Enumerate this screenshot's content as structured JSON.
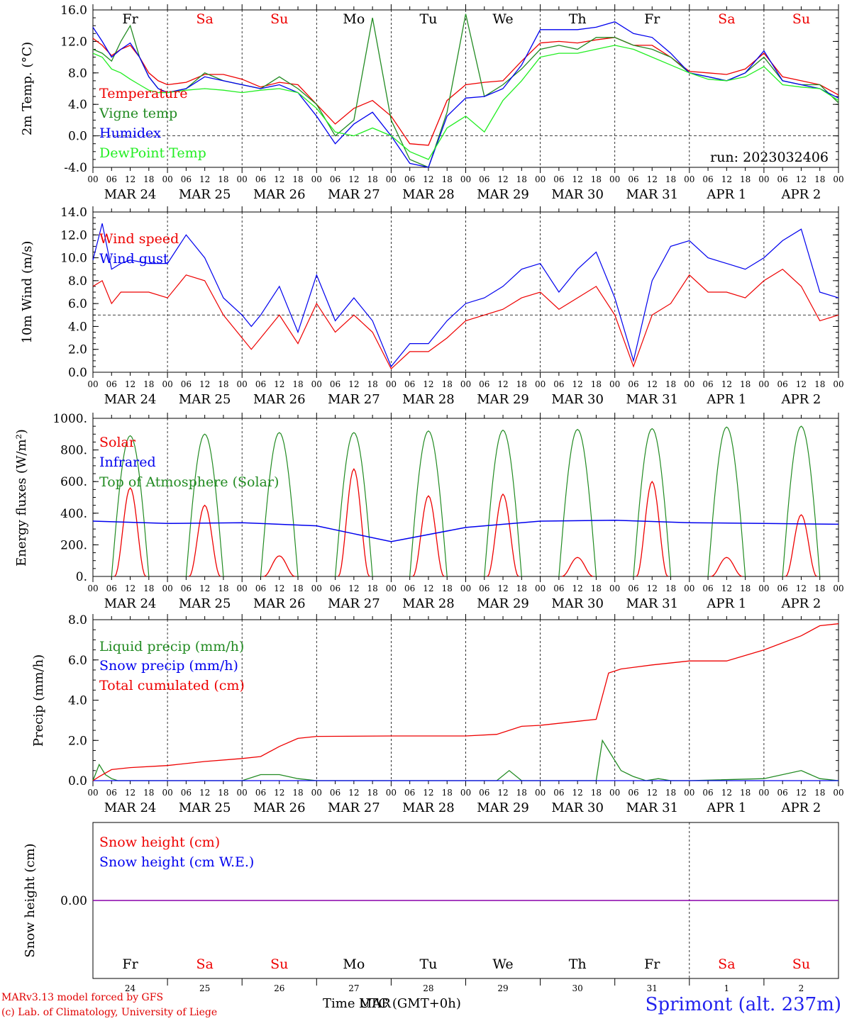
{
  "colors": {
    "red": "#ee0000",
    "darkgreen": "#228b22",
    "blue": "#0000ee",
    "lightgreen": "#22ee22",
    "purple": "#8800aa",
    "black": "#000000"
  },
  "date_labels": [
    "MAR 24",
    "MAR 25",
    "MAR 26",
    "MAR 27",
    "MAR 28",
    "MAR 29",
    "MAR 30",
    "MAR 31",
    "APR  1",
    "APR  2"
  ],
  "hour_labels": [
    "00",
    "06",
    "12",
    "18"
  ],
  "weekdays": [
    {
      "label": "Fr",
      "color": "black"
    },
    {
      "label": "Sa",
      "color": "red"
    },
    {
      "label": "Su",
      "color": "red"
    },
    {
      "label": "Mo",
      "color": "black"
    },
    {
      "label": "Tu",
      "color": "black"
    },
    {
      "label": "We",
      "color": "black"
    },
    {
      "label": "Th",
      "color": "black"
    },
    {
      "label": "Fr",
      "color": "black"
    },
    {
      "label": "Sa",
      "color": "red"
    },
    {
      "label": "Su",
      "color": "red"
    }
  ],
  "day_numbers": [
    "24",
    "25",
    "26",
    "27",
    "28",
    "29",
    "30",
    "31",
    "1",
    "2"
  ],
  "footer": {
    "model": "MARv3.13 model forced by GFS",
    "lab": "(c) Lab. of Climatology, University of Liege",
    "axis_label": "Time UTC (GMT+0h)",
    "axis_label_overlap": "MAR",
    "station": "Sprimont (alt. 237m)"
  },
  "chart_data": [
    {
      "type": "line",
      "ylabel": "2m Temp. (°C)",
      "ylim": [
        -4,
        16
      ],
      "ytick_labels": [
        "-4.0",
        "0.0",
        "4.0",
        "8.0",
        "12.0",
        "16.0"
      ],
      "annotation": "run: 2023032406",
      "reference_line": 0,
      "x_unit": "hours since MAR 24 00 UTC",
      "x": [
        0,
        3,
        6,
        9,
        12,
        15,
        18,
        21,
        24,
        30,
        36,
        42,
        48,
        54,
        60,
        66,
        72,
        78,
        84,
        90,
        96,
        102,
        108,
        114,
        120,
        126,
        132,
        138,
        144,
        150,
        156,
        162,
        168,
        174,
        180,
        186,
        192,
        198,
        204,
        210,
        216,
        222,
        228,
        234,
        240
      ],
      "series": [
        {
          "name": "Temperature",
          "color": "red",
          "values": [
            12.4,
            11.5,
            10.2,
            11,
            11.5,
            10,
            8,
            7,
            6.5,
            6.8,
            7.8,
            7.8,
            7.2,
            6.2,
            6.8,
            6.5,
            4,
            1.5,
            3.5,
            4.5,
            2.5,
            -1,
            -1.2,
            4.5,
            6.5,
            6.8,
            7,
            9.5,
            11.8,
            12,
            11.8,
            12.2,
            12.5,
            11.5,
            11.5,
            10,
            8.2,
            8,
            7.8,
            8.5,
            10.5,
            7.5,
            7,
            6.5,
            5.2
          ]
        },
        {
          "name": "Vigne temp",
          "color": "darkgreen",
          "values": [
            11,
            10.5,
            9.5,
            12,
            14,
            10,
            7.5,
            6,
            5.5,
            6,
            8,
            7,
            6.5,
            6,
            7.5,
            6,
            4,
            0,
            2,
            15,
            2,
            -3,
            -4,
            3,
            15.5,
            5,
            6.5,
            8.5,
            11,
            11.5,
            11,
            12.5,
            12.5,
            11.5,
            11,
            10,
            8,
            7.5,
            7,
            8,
            10,
            7,
            6.5,
            6.5,
            4.2
          ]
        },
        {
          "name": "Humidex",
          "color": "blue",
          "values": [
            13.8,
            12,
            10,
            11,
            11.8,
            10,
            7.5,
            6,
            5.5,
            6,
            7.5,
            7,
            6.5,
            6,
            6.5,
            5.5,
            2.5,
            -1,
            1.5,
            3,
            0,
            -3.5,
            -4,
            2.5,
            4.8,
            5,
            6,
            9,
            13.5,
            13.5,
            13.5,
            13.8,
            14.5,
            13,
            12.5,
            10.5,
            8,
            7.5,
            7,
            8,
            10.8,
            7,
            6.5,
            6,
            4.8
          ]
        },
        {
          "name": "DewPoint Temp",
          "color": "lightgreen",
          "values": [
            10.5,
            10,
            8.5,
            8,
            7.2,
            6.5,
            5.8,
            5.5,
            5.5,
            5.8,
            6,
            5.8,
            5.5,
            5.8,
            6,
            5.5,
            3.5,
            0.5,
            0,
            1,
            0,
            -2,
            -3,
            1,
            2.5,
            0.5,
            4.5,
            7,
            10,
            10.5,
            10.5,
            11,
            11.5,
            11,
            10,
            9,
            8,
            7.2,
            7,
            7.5,
            8.8,
            6.5,
            6.2,
            6,
            4.5
          ]
        }
      ]
    },
    {
      "type": "line",
      "ylabel": "10m Wind (m/s)",
      "ylim": [
        0,
        14
      ],
      "ytick_labels": [
        "0.0",
        "2.0",
        "4.0",
        "6.0",
        "8.0",
        "10.0",
        "12.0",
        "14.0"
      ],
      "reference_line": 5,
      "x_unit": "hours since MAR 24 00 UTC",
      "x": [
        0,
        3,
        6,
        9,
        12,
        18,
        24,
        30,
        36,
        42,
        48,
        51,
        54,
        60,
        66,
        72,
        78,
        84,
        90,
        96,
        102,
        108,
        114,
        120,
        126,
        132,
        138,
        144,
        150,
        156,
        162,
        168,
        174,
        180,
        186,
        192,
        198,
        204,
        210,
        216,
        222,
        228,
        234,
        240
      ],
      "series": [
        {
          "name": "Wind speed",
          "color": "red",
          "values": [
            7.5,
            8,
            6,
            7,
            7,
            7,
            6.5,
            8.5,
            8,
            5,
            3,
            2,
            3,
            5,
            2.5,
            6,
            3.5,
            5,
            3.5,
            0.3,
            1.8,
            1.8,
            3,
            4.5,
            5,
            5.5,
            6.5,
            7,
            5.5,
            6.5,
            7.5,
            5,
            0.5,
            5,
            6,
            8.5,
            7,
            7,
            6.5,
            8,
            9,
            7.5,
            4.5,
            5
          ]
        },
        {
          "name": "Wind gust",
          "color": "blue",
          "values": [
            9.8,
            13,
            9,
            9.5,
            9.8,
            9.5,
            9.5,
            12,
            10,
            6.5,
            5,
            4,
            5,
            7.5,
            3.5,
            8.5,
            4.5,
            6.5,
            4.5,
            0.5,
            2.5,
            2.5,
            4.5,
            6,
            6.5,
            7.5,
            9,
            9.5,
            7,
            9,
            10.5,
            6.5,
            1,
            8,
            11,
            11.5,
            10,
            9.5,
            9,
            10,
            11.5,
            12.5,
            7,
            6.5
          ]
        }
      ]
    },
    {
      "type": "line",
      "ylabel": "Energy fluxes (W/m²)",
      "ylim": [
        0,
        1000
      ],
      "ytick_labels": [
        "0.",
        "200.",
        "400.",
        "600.",
        "800.",
        "1000."
      ],
      "x_unit": "hours since MAR 24 00 UTC",
      "daily_peaks": {
        "day_index": [
          0,
          1,
          2,
          3,
          4,
          5,
          6,
          7,
          8,
          9
        ],
        "top_of_atmosphere_peak": [
          890,
          900,
          910,
          910,
          920,
          925,
          930,
          935,
          945,
          950
        ],
        "solar_peak": [
          560,
          450,
          130,
          680,
          510,
          520,
          120,
          600,
          120,
          390
        ]
      },
      "series": [
        {
          "name": "Solar",
          "color": "red",
          "values": [
            560,
            450,
            130,
            680,
            510,
            520,
            120,
            600,
            120,
            390
          ]
        },
        {
          "name": "Infrared",
          "color": "blue",
          "x": [
            0,
            24,
            48,
            72,
            84,
            96,
            120,
            144,
            168,
            192,
            216,
            240
          ],
          "values": [
            350,
            335,
            340,
            320,
            270,
            220,
            310,
            350,
            355,
            340,
            335,
            330
          ]
        },
        {
          "name": "Top of Atmosphere (Solar)",
          "color": "darkgreen",
          "values": [
            890,
            900,
            910,
            910,
            920,
            925,
            930,
            935,
            945,
            950
          ]
        }
      ]
    },
    {
      "type": "line",
      "ylabel": "Precip (mm/h)",
      "ylim": [
        0,
        8
      ],
      "ytick_labels": [
        "0.0",
        "2.0",
        "4.0",
        "6.0",
        "8.0"
      ],
      "x_unit": "hours since MAR 24 00 UTC",
      "series": [
        {
          "name": "Liquid precip (mm/h)",
          "color": "darkgreen",
          "x": [
            0,
            2,
            4,
            6,
            8,
            12,
            24,
            48,
            54,
            60,
            66,
            72,
            96,
            120,
            130,
            134,
            138,
            144,
            162,
            164,
            166,
            170,
            174,
            178,
            182,
            186,
            192,
            216,
            228,
            234,
            240
          ],
          "values": [
            0,
            0.8,
            0.3,
            0.1,
            0,
            0,
            0,
            0,
            0.3,
            0.3,
            0.1,
            0,
            0,
            0,
            0,
            0.5,
            0,
            0,
            0,
            2,
            1.5,
            0.5,
            0.2,
            0,
            0.1,
            0,
            0,
            0.1,
            0.5,
            0.1,
            0
          ]
        },
        {
          "name": "Snow precip (mm/h)",
          "color": "blue",
          "x": [
            0,
            240
          ],
          "values": [
            0,
            0
          ]
        },
        {
          "name": "Total cumulated (cm)",
          "color": "red",
          "x": [
            0,
            2,
            6,
            12,
            24,
            36,
            48,
            54,
            60,
            66,
            72,
            96,
            120,
            130,
            138,
            144,
            156,
            162,
            166,
            170,
            180,
            192,
            204,
            216,
            228,
            234,
            240
          ],
          "values": [
            0,
            0.2,
            0.55,
            0.65,
            0.75,
            0.95,
            1.1,
            1.2,
            1.7,
            2.1,
            2.2,
            2.22,
            2.22,
            2.3,
            2.7,
            2.75,
            2.95,
            3.05,
            5.35,
            5.55,
            5.75,
            5.95,
            5.95,
            6.5,
            7.2,
            7.7,
            7.8
          ]
        }
      ]
    },
    {
      "type": "line",
      "ylabel": "Snow height (cm)",
      "ytick_labels": [
        "0.00"
      ],
      "series": [
        {
          "name": "Snow height (cm)",
          "color": "red",
          "x": [
            0,
            240
          ],
          "values": [
            0,
            0
          ]
        },
        {
          "name": "Snow height (cm W.E.)",
          "color": "blue",
          "x": [
            0,
            240
          ],
          "values": [
            0,
            0
          ]
        }
      ]
    }
  ]
}
